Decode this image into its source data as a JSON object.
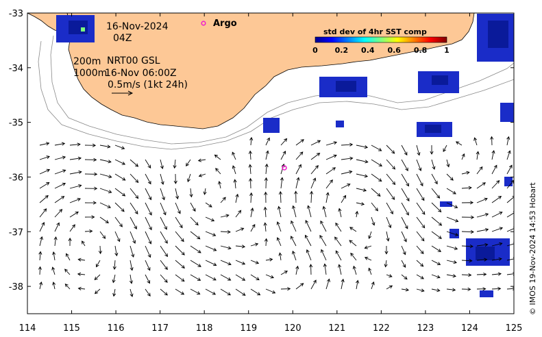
{
  "map": {
    "date_line": "16-Nov-2024",
    "hour_line": "04Z",
    "isobath_shallow": "200m",
    "isobath_deep": "1000m",
    "model_line": "NRT00 GSL",
    "current_time_line": "16-Nov 06:00Z",
    "scale_vector_label": "0.5m/s (1kt 24h)",
    "lon_range": [
      114,
      125
    ],
    "lat_range": [
      -38.5,
      -33
    ],
    "lon_ticks": [
      "114",
      "115",
      "116",
      "117",
      "118",
      "119",
      "120",
      "121",
      "122",
      "123",
      "124",
      "125"
    ],
    "lat_ticks": [
      "-33",
      "-34",
      "-35",
      "-36",
      "-37",
      "-38"
    ],
    "land_color": "#fdc896",
    "argo": {
      "legend_label": "Argo",
      "color": "#ee22cc",
      "lon": 119.8,
      "lat": -35.83
    },
    "credit": "© IMOS 19-Nov-2024 14:53 Hobart"
  },
  "colorbar": {
    "title": "std dev of 4hr SST comp",
    "ticks": [
      "0",
      "0.2",
      "0.4",
      "0.6",
      "0.8",
      "1"
    ],
    "range": [
      0,
      1
    ],
    "colormap": "jet"
  }
}
